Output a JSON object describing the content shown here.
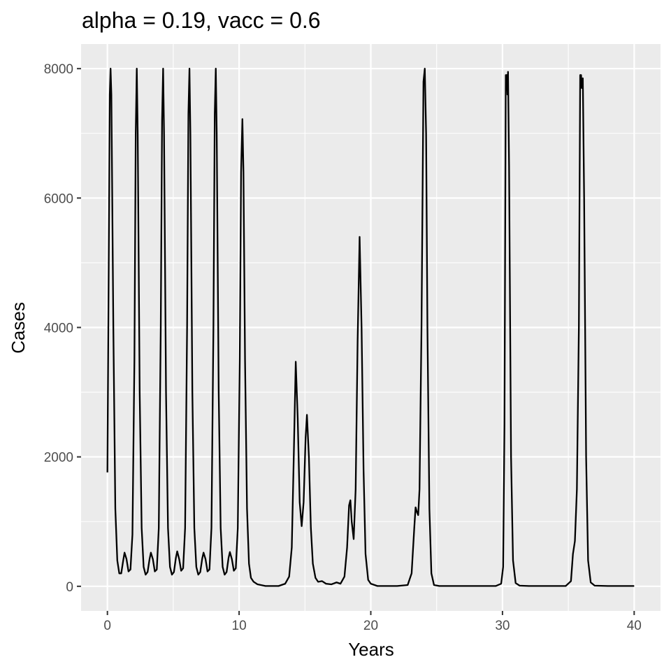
{
  "chart_data": {
    "type": "line",
    "title": "alpha = 0.19, vacc = 0.6",
    "xlabel": "Years",
    "ylabel": "Cases",
    "xlim": [
      -2,
      42
    ],
    "ylim": [
      -380,
      8380
    ],
    "x_ticks": [
      0,
      10,
      20,
      30,
      40
    ],
    "x_tick_labels": [
      "0",
      "10",
      "20",
      "30",
      "40"
    ],
    "y_ticks": [
      0,
      2000,
      4000,
      6000,
      8000
    ],
    "y_tick_labels": [
      "0",
      "2000",
      "4000",
      "6000",
      "8000"
    ],
    "grid": true,
    "background": "#EBEBEB",
    "line_color": "#000000",
    "series": [
      {
        "points": [
          [
            0.0,
            1760
          ],
          [
            0.1,
            5000
          ],
          [
            0.18,
            7600
          ],
          [
            0.24,
            8000
          ],
          [
            0.3,
            7600
          ],
          [
            0.45,
            4000
          ],
          [
            0.6,
            1200
          ],
          [
            0.75,
            400
          ],
          [
            0.9,
            200
          ],
          [
            1.05,
            200
          ],
          [
            1.2,
            400
          ],
          [
            1.3,
            520
          ],
          [
            1.45,
            420
          ],
          [
            1.6,
            230
          ],
          [
            1.75,
            260
          ],
          [
            1.9,
            800
          ],
          [
            2.05,
            3500
          ],
          [
            2.15,
            7000
          ],
          [
            2.23,
            8000
          ],
          [
            2.3,
            7000
          ],
          [
            2.45,
            3000
          ],
          [
            2.6,
            900
          ],
          [
            2.75,
            300
          ],
          [
            2.9,
            180
          ],
          [
            3.05,
            220
          ],
          [
            3.2,
            420
          ],
          [
            3.3,
            520
          ],
          [
            3.45,
            420
          ],
          [
            3.6,
            230
          ],
          [
            3.75,
            260
          ],
          [
            3.9,
            900
          ],
          [
            4.05,
            4000
          ],
          [
            4.15,
            7200
          ],
          [
            4.23,
            8000
          ],
          [
            4.3,
            7000
          ],
          [
            4.45,
            3000
          ],
          [
            4.6,
            900
          ],
          [
            4.75,
            300
          ],
          [
            4.9,
            180
          ],
          [
            5.05,
            220
          ],
          [
            5.2,
            440
          ],
          [
            5.3,
            540
          ],
          [
            5.45,
            420
          ],
          [
            5.6,
            240
          ],
          [
            5.75,
            280
          ],
          [
            5.9,
            900
          ],
          [
            6.05,
            4000
          ],
          [
            6.15,
            7300
          ],
          [
            6.23,
            8000
          ],
          [
            6.3,
            7000
          ],
          [
            6.45,
            3000
          ],
          [
            6.6,
            900
          ],
          [
            6.75,
            300
          ],
          [
            6.9,
            180
          ],
          [
            7.05,
            220
          ],
          [
            7.2,
            430
          ],
          [
            7.3,
            520
          ],
          [
            7.45,
            420
          ],
          [
            7.6,
            230
          ],
          [
            7.75,
            260
          ],
          [
            7.9,
            900
          ],
          [
            8.05,
            4000
          ],
          [
            8.15,
            7300
          ],
          [
            8.23,
            8000
          ],
          [
            8.3,
            7000
          ],
          [
            8.45,
            3000
          ],
          [
            8.6,
            900
          ],
          [
            8.75,
            300
          ],
          [
            8.9,
            180
          ],
          [
            9.05,
            220
          ],
          [
            9.2,
            440
          ],
          [
            9.3,
            530
          ],
          [
            9.45,
            420
          ],
          [
            9.6,
            240
          ],
          [
            9.75,
            280
          ],
          [
            9.9,
            900
          ],
          [
            10.05,
            3500
          ],
          [
            10.15,
            6400
          ],
          [
            10.25,
            7220
          ],
          [
            10.33,
            6400
          ],
          [
            10.45,
            3500
          ],
          [
            10.6,
            1200
          ],
          [
            10.75,
            350
          ],
          [
            10.9,
            130
          ],
          [
            11.1,
            70
          ],
          [
            11.4,
            30
          ],
          [
            12.0,
            5
          ],
          [
            13.0,
            5
          ],
          [
            13.5,
            40
          ],
          [
            13.8,
            150
          ],
          [
            14.0,
            600
          ],
          [
            14.15,
            2000
          ],
          [
            14.3,
            3470
          ],
          [
            14.45,
            2600
          ],
          [
            14.6,
            1300
          ],
          [
            14.75,
            930
          ],
          [
            14.9,
            1300
          ],
          [
            15.05,
            2300
          ],
          [
            15.15,
            2650
          ],
          [
            15.3,
            2000
          ],
          [
            15.45,
            900
          ],
          [
            15.6,
            350
          ],
          [
            15.8,
            130
          ],
          [
            16.0,
            70
          ],
          [
            16.3,
            80
          ],
          [
            16.6,
            40
          ],
          [
            17.0,
            30
          ],
          [
            17.4,
            60
          ],
          [
            17.7,
            40
          ],
          [
            18.0,
            150
          ],
          [
            18.2,
            600
          ],
          [
            18.35,
            1250
          ],
          [
            18.45,
            1330
          ],
          [
            18.55,
            1000
          ],
          [
            18.7,
            730
          ],
          [
            18.85,
            1500
          ],
          [
            19.0,
            3800
          ],
          [
            19.15,
            5400
          ],
          [
            19.3,
            4000
          ],
          [
            19.45,
            1800
          ],
          [
            19.6,
            500
          ],
          [
            19.8,
            100
          ],
          [
            20.0,
            40
          ],
          [
            20.5,
            5
          ],
          [
            22.0,
            5
          ],
          [
            22.8,
            20
          ],
          [
            23.1,
            200
          ],
          [
            23.3,
            900
          ],
          [
            23.4,
            1220
          ],
          [
            23.5,
            1150
          ],
          [
            23.6,
            1100
          ],
          [
            23.7,
            1500
          ],
          [
            23.85,
            4000
          ],
          [
            24.0,
            7800
          ],
          [
            24.1,
            8000
          ],
          [
            24.2,
            7000
          ],
          [
            24.3,
            4000
          ],
          [
            24.45,
            1200
          ],
          [
            24.6,
            200
          ],
          [
            24.8,
            20
          ],
          [
            25.2,
            5
          ],
          [
            29.5,
            5
          ],
          [
            29.9,
            40
          ],
          [
            30.05,
            300
          ],
          [
            30.15,
            2500
          ],
          [
            30.25,
            7900
          ],
          [
            30.33,
            7900
          ],
          [
            30.38,
            7600
          ],
          [
            30.42,
            7950
          ],
          [
            30.5,
            6500
          ],
          [
            30.65,
            2000
          ],
          [
            30.8,
            400
          ],
          [
            31.0,
            50
          ],
          [
            31.3,
            10
          ],
          [
            32.0,
            5
          ],
          [
            34.8,
            5
          ],
          [
            35.2,
            80
          ],
          [
            35.35,
            500
          ],
          [
            35.5,
            700
          ],
          [
            35.65,
            1500
          ],
          [
            35.8,
            4000
          ],
          [
            35.9,
            7900
          ],
          [
            35.97,
            7900
          ],
          [
            36.02,
            7700
          ],
          [
            36.1,
            7850
          ],
          [
            36.2,
            6000
          ],
          [
            36.35,
            2000
          ],
          [
            36.5,
            400
          ],
          [
            36.7,
            60
          ],
          [
            37.0,
            10
          ],
          [
            38.0,
            5
          ],
          [
            40.0,
            5
          ]
        ]
      }
    ]
  }
}
